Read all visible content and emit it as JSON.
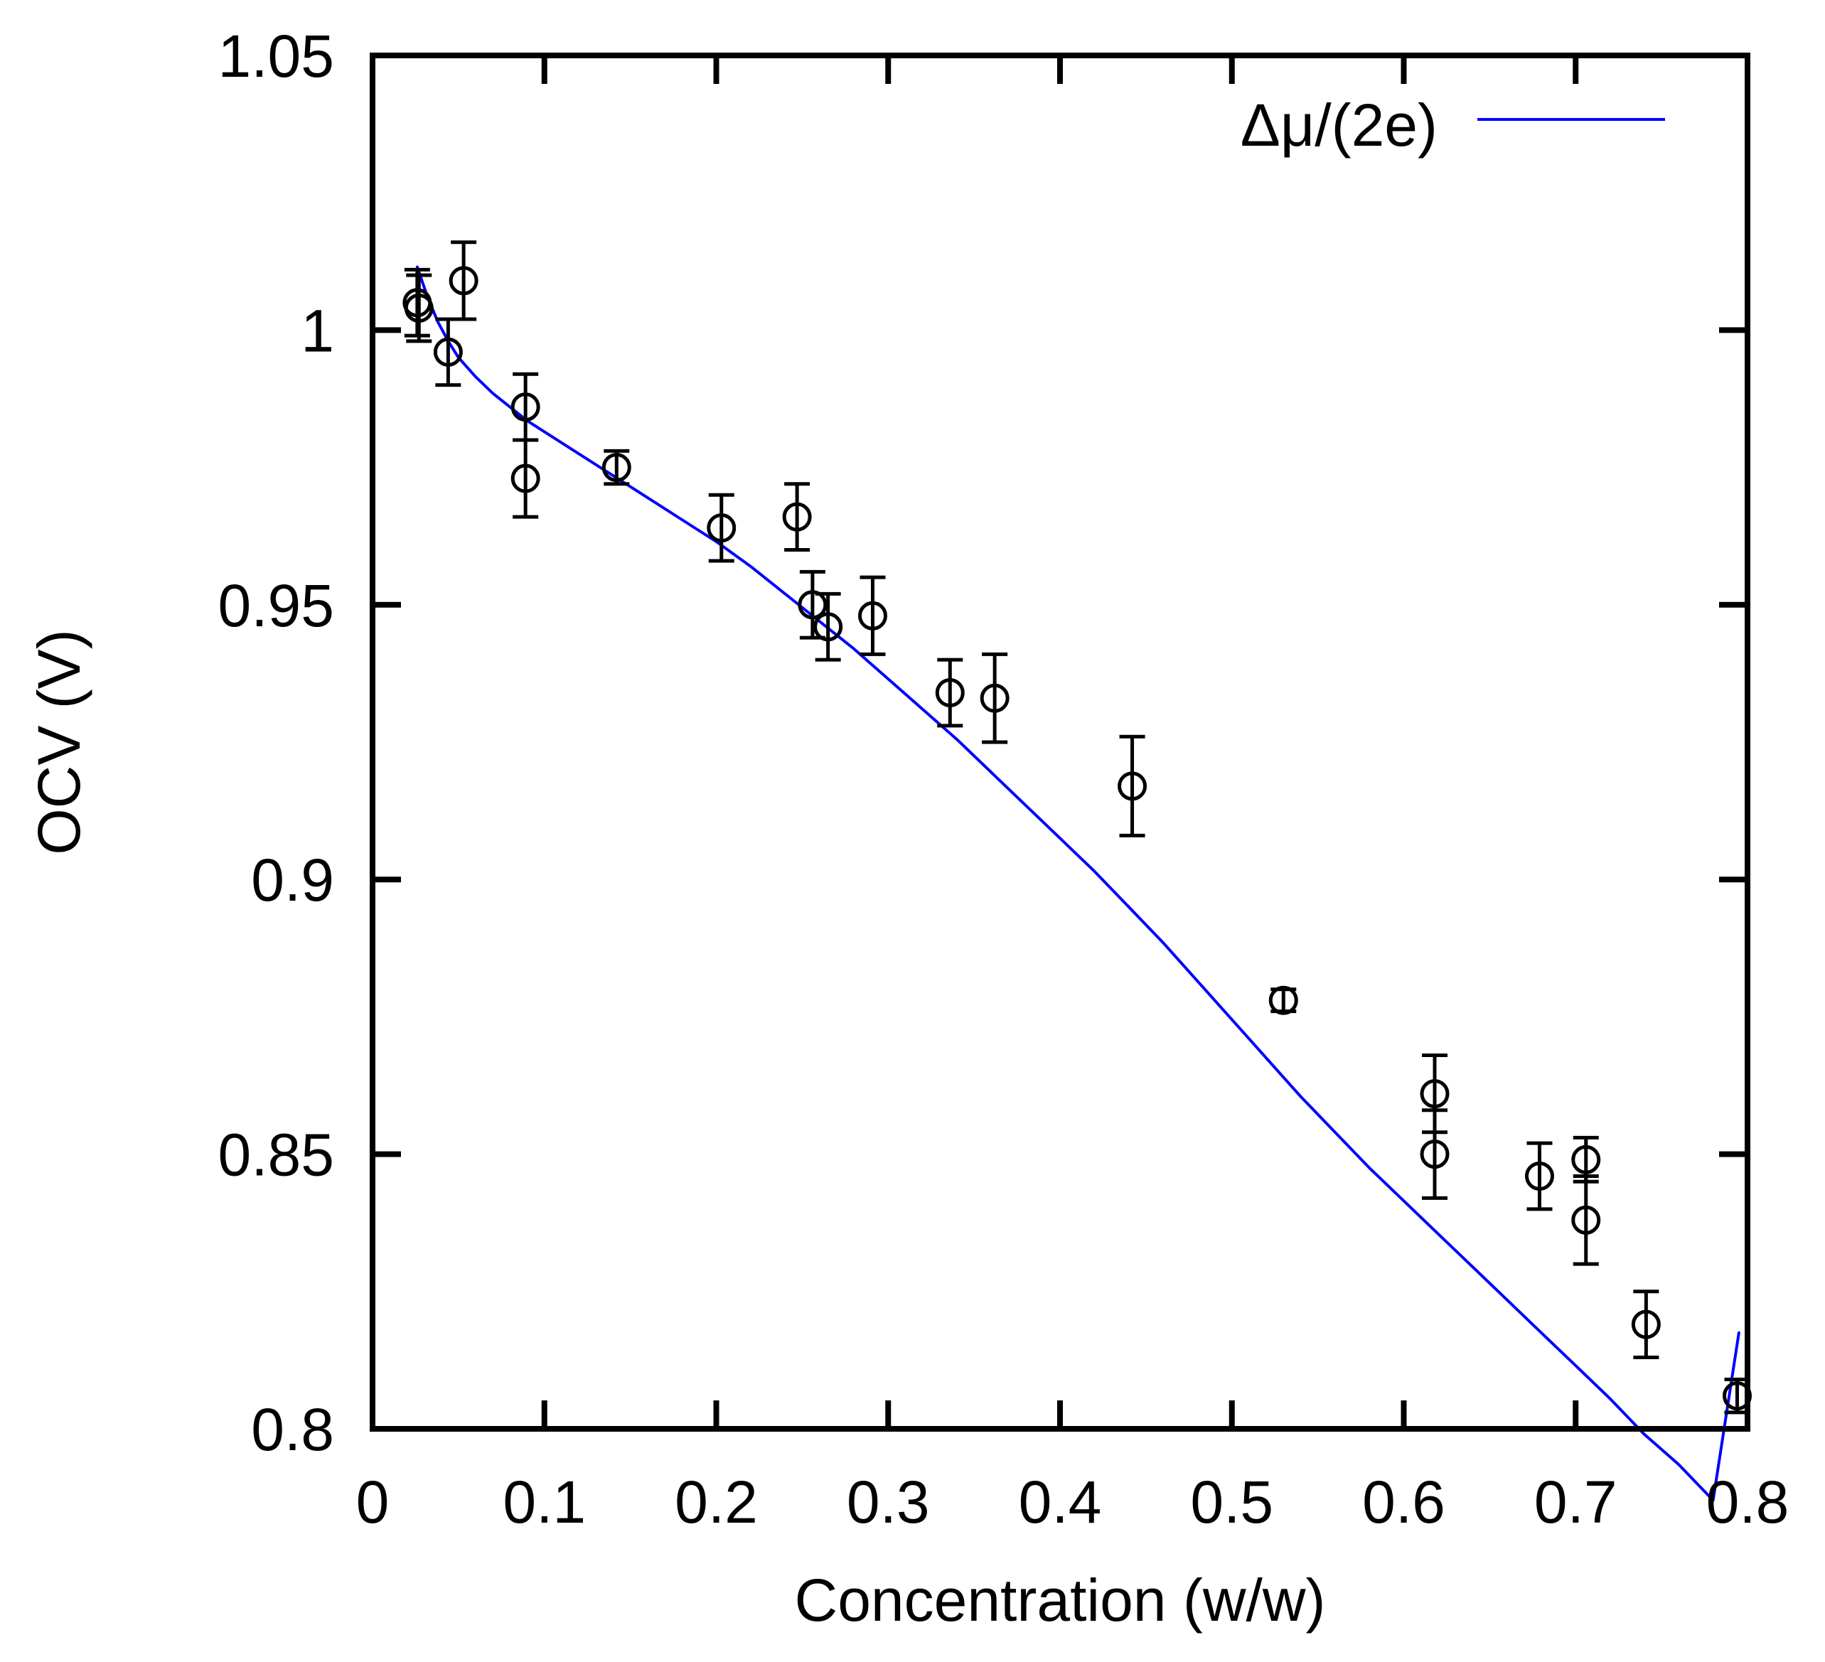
{
  "chart_data": {
    "type": "scatter",
    "title": "",
    "xlabel": "Concentration (w/w)",
    "ylabel": "OCV (V)",
    "xlim": [
      0,
      0.8
    ],
    "ylim": [
      0.8,
      1.05
    ],
    "x_ticks": [
      0,
      0.1,
      0.2,
      0.3,
      0.4,
      0.5,
      0.6,
      0.7,
      0.8
    ],
    "x_tick_labels": [
      "0",
      "0.1",
      "0.2",
      "0.3",
      "0.4",
      "0.5",
      "0.6",
      "0.7",
      "0.8"
    ],
    "y_ticks": [
      0.8,
      0.85,
      0.9,
      0.95,
      1.0,
      1.05
    ],
    "y_tick_labels": [
      "0.8",
      "0.85",
      "0.9",
      "0.95",
      "1",
      "1.05"
    ],
    "grid": false,
    "legend_position": "top-right",
    "series": [
      {
        "name": "",
        "kind": "points-with-error-bars",
        "marker": "open-circle",
        "color": "#000000",
        "points": [
          {
            "x": 0.026,
            "y": 1.005,
            "err": 0.006
          },
          {
            "x": 0.027,
            "y": 1.004,
            "err": 0.006
          },
          {
            "x": 0.044,
            "y": 0.996,
            "err": 0.006
          },
          {
            "x": 0.053,
            "y": 1.009,
            "err": 0.007
          },
          {
            "x": 0.089,
            "y": 0.986,
            "err": 0.006
          },
          {
            "x": 0.089,
            "y": 0.973,
            "err": 0.007
          },
          {
            "x": 0.142,
            "y": 0.975,
            "err": 0.003
          },
          {
            "x": 0.203,
            "y": 0.964,
            "err": 0.006
          },
          {
            "x": 0.247,
            "y": 0.966,
            "err": 0.006
          },
          {
            "x": 0.256,
            "y": 0.95,
            "err": 0.006
          },
          {
            "x": 0.265,
            "y": 0.946,
            "err": 0.006
          },
          {
            "x": 0.291,
            "y": 0.948,
            "err": 0.007
          },
          {
            "x": 0.336,
            "y": 0.934,
            "err": 0.006
          },
          {
            "x": 0.362,
            "y": 0.933,
            "err": 0.008
          },
          {
            "x": 0.442,
            "y": 0.917,
            "err": 0.009
          },
          {
            "x": 0.53,
            "y": 0.878,
            "err": 0.002
          },
          {
            "x": 0.618,
            "y": 0.861,
            "err": 0.007
          },
          {
            "x": 0.618,
            "y": 0.85,
            "err": 0.008
          },
          {
            "x": 0.679,
            "y": 0.846,
            "err": 0.006
          },
          {
            "x": 0.706,
            "y": 0.849,
            "err": 0.004
          },
          {
            "x": 0.706,
            "y": 0.838,
            "err": 0.008
          },
          {
            "x": 0.741,
            "y": 0.819,
            "err": 0.006
          },
          {
            "x": 0.794,
            "y": 0.806,
            "err": 0.003
          }
        ]
      },
      {
        "name": "Δμ/(2e)",
        "kind": "line",
        "color": "#0000ff",
        "x": [
          0.026,
          0.032,
          0.038,
          0.044,
          0.05,
          0.06,
          0.07,
          0.08,
          0.09,
          0.1,
          0.12,
          0.14,
          0.16,
          0.18,
          0.2,
          0.22,
          0.24,
          0.26,
          0.28,
          0.3,
          0.32,
          0.34,
          0.36,
          0.38,
          0.4,
          0.42,
          0.44,
          0.46,
          0.48,
          0.5,
          0.52,
          0.54,
          0.56,
          0.58,
          0.6,
          0.62,
          0.64,
          0.66,
          0.68,
          0.7,
          0.72,
          0.74,
          0.76,
          0.78,
          0.795
        ],
        "values": [
          1.0115,
          1.006,
          1.0015,
          0.998,
          0.995,
          0.9915,
          0.9885,
          0.986,
          0.9835,
          0.9815,
          0.9775,
          0.9735,
          0.9695,
          0.9655,
          0.9615,
          0.957,
          0.952,
          0.947,
          0.942,
          0.9365,
          0.931,
          0.9255,
          0.9195,
          0.9135,
          0.9075,
          0.9015,
          0.895,
          0.8885,
          0.8815,
          0.8745,
          0.8675,
          0.8605,
          0.854,
          0.8475,
          0.8415,
          0.8355,
          0.8295,
          0.8235,
          0.8175,
          0.8115,
          0.8055,
          0.799,
          0.7935,
          0.787,
          0.8175
        ]
      }
    ]
  },
  "colors": {
    "axes": "#000000",
    "points": "#000000",
    "curve": "#0000ff",
    "background": "#ffffff"
  }
}
